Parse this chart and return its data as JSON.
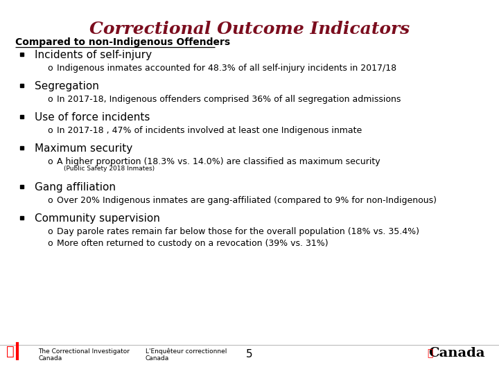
{
  "title": "Correctional Outcome Indicators",
  "title_color": "#7B0D1E",
  "subtitle": "Compared to non-Indigenous Offenders",
  "subtitle_color": "#000000",
  "background_color": "#FFFFFF",
  "bullet_color": "#000000",
  "bullet_symbol": "■",
  "sub_bullet_symbol": "o",
  "bullet_items": [
    {
      "header": "Incidents of self-injury",
      "sub_items": [
        "Indigenous inmates accounted for 48.3% of all self-injury incidents in 2017/18"
      ],
      "footnote": null
    },
    {
      "header": "Segregation",
      "sub_items": [
        "In 2017-18, Indigenous offenders comprised 36% of all segregation admissions"
      ],
      "footnote": null
    },
    {
      "header": "Use of force incidents",
      "sub_items": [
        "In 2017-18 , 47% of incidents involved at least one Indigenous inmate"
      ],
      "footnote": null
    },
    {
      "header": "Maximum security",
      "sub_items": [
        "A higher proportion (18.3% vs. 14.0%) are classified as maximum security"
      ],
      "footnote": "(Public Safety 2018 Inmates)"
    },
    {
      "header": "Gang affiliation",
      "sub_items": [
        "Over 20% Indigenous inmates are gang-affiliated (compared to 9% for non-Indigenous)"
      ],
      "footnote": null
    },
    {
      "header": "Community supervision",
      "sub_items": [
        "Day parole rates remain far below those for the overall population (18% vs. 35.4%)",
        "More often returned to custody on a revocation (39% vs. 31%)"
      ],
      "footnote": null
    }
  ],
  "footer_page_num": "5",
  "header_fontsize": 11,
  "sub_fontsize": 9,
  "footnote_fontsize": 6.5,
  "title_fontsize": 18,
  "subtitle_fontsize": 10,
  "footer_fontsize": 6.5,
  "footer_canada_fontsize": 14
}
